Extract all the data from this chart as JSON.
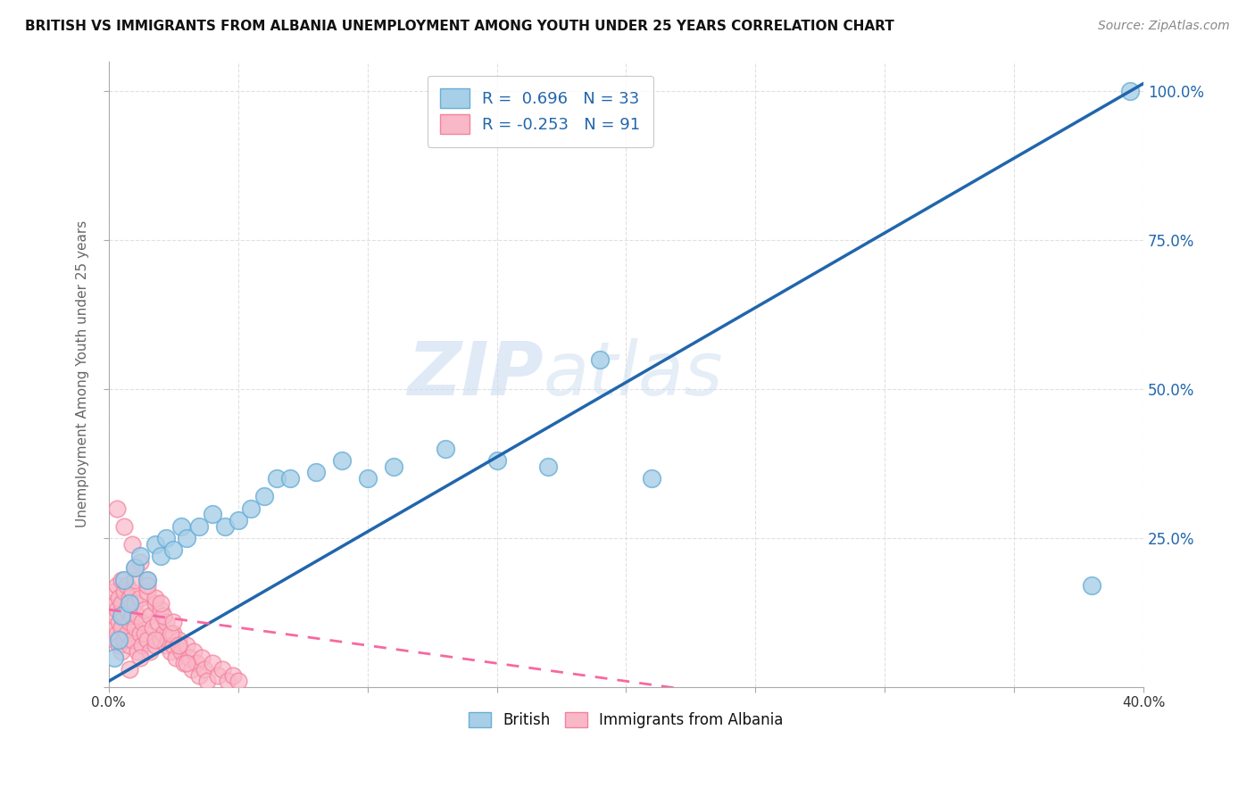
{
  "title": "BRITISH VS IMMIGRANTS FROM ALBANIA UNEMPLOYMENT AMONG YOUTH UNDER 25 YEARS CORRELATION CHART",
  "source": "Source: ZipAtlas.com",
  "ylabel": "Unemployment Among Youth under 25 years",
  "british_R": 0.696,
  "british_N": 33,
  "albania_R": -0.253,
  "albania_N": 91,
  "british_color": "#a8cfe8",
  "albania_color": "#f9b8c8",
  "british_edge_color": "#6aaed6",
  "albania_edge_color": "#f4829e",
  "british_line_color": "#2166ac",
  "albania_line_color": "#f768a1",
  "legend_label_british": "British",
  "legend_label_albania": "Immigrants from Albania",
  "british_scatter_x": [
    0.002,
    0.004,
    0.005,
    0.006,
    0.008,
    0.01,
    0.012,
    0.015,
    0.018,
    0.02,
    0.022,
    0.025,
    0.028,
    0.03,
    0.035,
    0.04,
    0.045,
    0.05,
    0.055,
    0.06,
    0.065,
    0.07,
    0.08,
    0.09,
    0.1,
    0.11,
    0.13,
    0.15,
    0.17,
    0.19,
    0.21,
    0.38,
    0.395
  ],
  "british_scatter_y": [
    0.05,
    0.08,
    0.12,
    0.18,
    0.14,
    0.2,
    0.22,
    0.18,
    0.24,
    0.22,
    0.25,
    0.23,
    0.27,
    0.25,
    0.27,
    0.29,
    0.27,
    0.28,
    0.3,
    0.32,
    0.35,
    0.35,
    0.36,
    0.38,
    0.35,
    0.37,
    0.4,
    0.38,
    0.37,
    0.55,
    0.35,
    0.17,
    1.0
  ],
  "albania_scatter_x": [
    0.001,
    0.001,
    0.002,
    0.002,
    0.002,
    0.003,
    0.003,
    0.003,
    0.004,
    0.004,
    0.004,
    0.005,
    0.005,
    0.005,
    0.005,
    0.006,
    0.006,
    0.006,
    0.007,
    0.007,
    0.007,
    0.008,
    0.008,
    0.008,
    0.009,
    0.009,
    0.009,
    0.01,
    0.01,
    0.01,
    0.011,
    0.011,
    0.012,
    0.012,
    0.013,
    0.013,
    0.014,
    0.014,
    0.015,
    0.015,
    0.016,
    0.016,
    0.017,
    0.018,
    0.018,
    0.019,
    0.02,
    0.02,
    0.021,
    0.022,
    0.022,
    0.023,
    0.024,
    0.025,
    0.025,
    0.026,
    0.027,
    0.028,
    0.029,
    0.03,
    0.031,
    0.032,
    0.033,
    0.034,
    0.035,
    0.036,
    0.037,
    0.038,
    0.04,
    0.042,
    0.044,
    0.046,
    0.048,
    0.05,
    0.003,
    0.006,
    0.009,
    0.012,
    0.015,
    0.018,
    0.021,
    0.024,
    0.027,
    0.03,
    0.01,
    0.015,
    0.02,
    0.025,
    0.018,
    0.012,
    0.008
  ],
  "albania_scatter_y": [
    0.1,
    0.14,
    0.12,
    0.16,
    0.08,
    0.13,
    0.17,
    0.09,
    0.15,
    0.11,
    0.07,
    0.14,
    0.1,
    0.18,
    0.06,
    0.12,
    0.16,
    0.08,
    0.13,
    0.09,
    0.17,
    0.11,
    0.15,
    0.07,
    0.12,
    0.16,
    0.08,
    0.14,
    0.1,
    0.18,
    0.06,
    0.12,
    0.09,
    0.15,
    0.11,
    0.07,
    0.13,
    0.09,
    0.16,
    0.08,
    0.12,
    0.06,
    0.1,
    0.14,
    0.07,
    0.11,
    0.08,
    0.13,
    0.09,
    0.07,
    0.11,
    0.08,
    0.06,
    0.09,
    0.07,
    0.05,
    0.08,
    0.06,
    0.04,
    0.07,
    0.05,
    0.03,
    0.06,
    0.04,
    0.02,
    0.05,
    0.03,
    0.01,
    0.04,
    0.02,
    0.03,
    0.01,
    0.02,
    0.01,
    0.3,
    0.27,
    0.24,
    0.21,
    0.18,
    0.15,
    0.12,
    0.09,
    0.07,
    0.04,
    0.2,
    0.17,
    0.14,
    0.11,
    0.08,
    0.05,
    0.03
  ],
  "watermark_zip": "ZIP",
  "watermark_atlas": "atlas",
  "background_color": "#ffffff",
  "grid_color": "#dddddd",
  "title_fontsize": 11,
  "source_fontsize": 10
}
